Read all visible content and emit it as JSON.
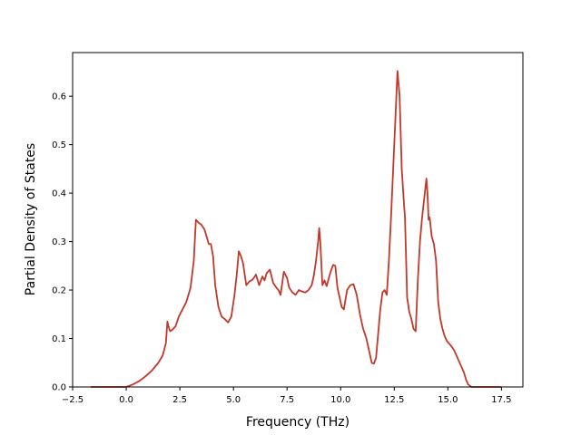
{
  "chart_data": {
    "type": "line",
    "title": "",
    "xlabel": "Frequency (THz)",
    "ylabel": "Partial Density of States",
    "xlim": [
      -2.5,
      18.5
    ],
    "ylim": [
      0.0,
      0.69
    ],
    "grid": false,
    "line_color": "#c0392b",
    "xticks": [
      {
        "value": -2.5,
        "label": "−2.5"
      },
      {
        "value": 0.0,
        "label": "0.0"
      },
      {
        "value": 2.5,
        "label": "2.5"
      },
      {
        "value": 5.0,
        "label": "5.0"
      },
      {
        "value": 7.5,
        "label": "7.5"
      },
      {
        "value": 10.0,
        "label": "10.0"
      },
      {
        "value": 12.5,
        "label": "12.5"
      },
      {
        "value": 15.0,
        "label": "15.0"
      },
      {
        "value": 17.5,
        "label": "17.5"
      }
    ],
    "yticks": [
      {
        "value": 0.0,
        "label": "0.0"
      },
      {
        "value": 0.1,
        "label": "0.1"
      },
      {
        "value": 0.2,
        "label": "0.2"
      },
      {
        "value": 0.3,
        "label": "0.3"
      },
      {
        "value": 0.4,
        "label": "0.4"
      },
      {
        "value": 0.5,
        "label": "0.5"
      },
      {
        "value": 0.6,
        "label": "0.6"
      }
    ],
    "series": [
      {
        "x": [
          -1.65,
          -1.0,
          -0.5,
          0.0,
          0.3,
          0.6,
          0.9,
          1.2,
          1.5,
          1.7,
          1.85,
          1.92,
          1.97,
          2.05,
          2.15,
          2.3,
          2.45,
          2.6,
          2.8,
          3.0,
          3.15,
          3.25,
          3.35,
          3.5,
          3.65,
          3.75,
          3.85,
          3.95,
          4.05,
          4.15,
          4.3,
          4.45,
          4.6,
          4.75,
          4.9,
          5.05,
          5.15,
          5.25,
          5.35,
          5.45,
          5.6,
          5.75,
          5.85,
          5.95,
          6.05,
          6.2,
          6.35,
          6.45,
          6.55,
          6.7,
          6.85,
          7.0,
          7.1,
          7.2,
          7.35,
          7.5,
          7.6,
          7.75,
          7.9,
          8.05,
          8.2,
          8.35,
          8.5,
          8.65,
          8.75,
          8.85,
          8.95,
          9.0,
          9.05,
          9.15,
          9.25,
          9.35,
          9.45,
          9.55,
          9.65,
          9.75,
          9.85,
          9.95,
          10.05,
          10.15,
          10.3,
          10.45,
          10.6,
          10.75,
          10.9,
          11.05,
          11.2,
          11.35,
          11.45,
          11.55,
          11.65,
          11.75,
          11.85,
          11.95,
          12.05,
          12.15,
          12.25,
          12.35,
          12.45,
          12.55,
          12.65,
          12.75,
          12.85,
          12.95,
          13.0,
          13.1,
          13.2,
          13.3,
          13.4,
          13.5,
          13.6,
          13.7,
          13.8,
          13.9,
          14.0,
          14.05,
          14.1,
          14.15,
          14.2,
          14.25,
          14.35,
          14.45,
          14.55,
          14.65,
          14.75,
          14.85,
          14.95,
          15.05,
          15.15,
          15.3,
          15.45,
          15.6,
          15.75,
          15.85,
          15.95,
          16.1,
          16.5,
          17.0,
          17.5
        ],
        "y": [
          0.0,
          0.0,
          0.0,
          0.0,
          0.005,
          0.012,
          0.022,
          0.034,
          0.05,
          0.065,
          0.09,
          0.135,
          0.125,
          0.115,
          0.118,
          0.125,
          0.145,
          0.158,
          0.175,
          0.205,
          0.26,
          0.345,
          0.34,
          0.335,
          0.325,
          0.31,
          0.295,
          0.295,
          0.27,
          0.21,
          0.165,
          0.145,
          0.14,
          0.133,
          0.145,
          0.19,
          0.23,
          0.28,
          0.27,
          0.255,
          0.21,
          0.218,
          0.22,
          0.225,
          0.232,
          0.21,
          0.228,
          0.22,
          0.235,
          0.242,
          0.215,
          0.205,
          0.2,
          0.19,
          0.238,
          0.225,
          0.205,
          0.195,
          0.19,
          0.2,
          0.197,
          0.195,
          0.2,
          0.21,
          0.23,
          0.26,
          0.3,
          0.328,
          0.3,
          0.21,
          0.22,
          0.208,
          0.225,
          0.24,
          0.252,
          0.25,
          0.205,
          0.185,
          0.165,
          0.16,
          0.2,
          0.21,
          0.212,
          0.19,
          0.15,
          0.12,
          0.1,
          0.07,
          0.05,
          0.048,
          0.06,
          0.11,
          0.16,
          0.195,
          0.2,
          0.19,
          0.26,
          0.35,
          0.45,
          0.55,
          0.652,
          0.6,
          0.45,
          0.38,
          0.35,
          0.185,
          0.155,
          0.14,
          0.12,
          0.115,
          0.22,
          0.3,
          0.35,
          0.39,
          0.43,
          0.4,
          0.345,
          0.35,
          0.33,
          0.31,
          0.295,
          0.26,
          0.175,
          0.14,
          0.12,
          0.105,
          0.095,
          0.09,
          0.085,
          0.075,
          0.06,
          0.045,
          0.03,
          0.015,
          0.005,
          0.0,
          0.0,
          0.0,
          0.0
        ]
      }
    ]
  }
}
